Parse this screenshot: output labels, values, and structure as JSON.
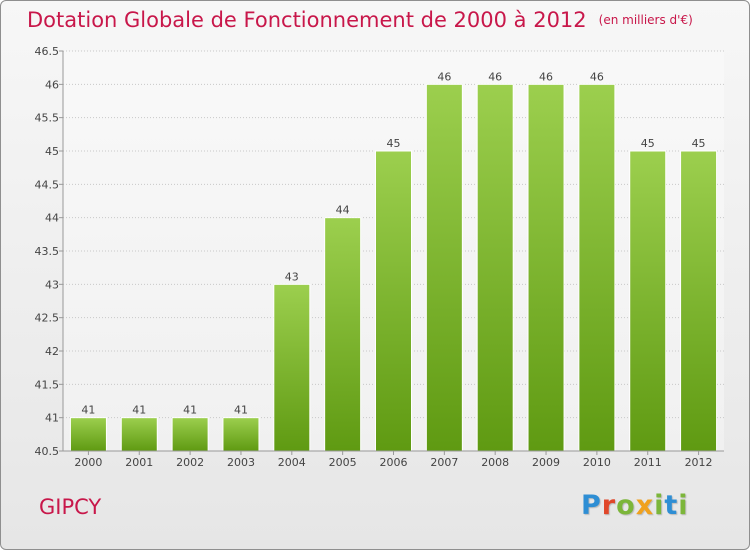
{
  "title": "Dotation Globale de Fonctionnement de 2000 à 2012",
  "unit_label": "(en milliers d'€)",
  "commune": "GIPCY",
  "logo": {
    "text": "Proxiti",
    "letters": [
      "P",
      "r",
      "o",
      "x",
      "i",
      "t",
      "i"
    ]
  },
  "colors": {
    "title": "#c8174a",
    "bar_top": "#9ccf4e",
    "bar_bottom": "#5f9a12",
    "grid": "#c8c8c8"
  },
  "chart_data": {
    "type": "bar",
    "title": "Dotation Globale de Fonctionnement de 2000 à 2012",
    "categories": [
      "2000",
      "2001",
      "2002",
      "2003",
      "2004",
      "2005",
      "2006",
      "2007",
      "2008",
      "2009",
      "2010",
      "2011",
      "2012"
    ],
    "values": [
      41,
      41,
      41,
      41,
      43,
      44,
      45,
      46,
      46,
      46,
      46,
      45,
      45
    ],
    "data_labels": [
      "41",
      "41",
      "41",
      "41",
      "43",
      "44",
      "45",
      "46",
      "46",
      "46",
      "46",
      "45",
      "45"
    ],
    "ylim": [
      40.5,
      46.5
    ],
    "yticks": [
      "40.5",
      "41",
      "41.5",
      "42",
      "42.5",
      "43",
      "43.5",
      "44",
      "44.5",
      "45",
      "45.5",
      "46",
      "46.5"
    ],
    "grid": true,
    "xlabel": "",
    "ylabel": ""
  }
}
